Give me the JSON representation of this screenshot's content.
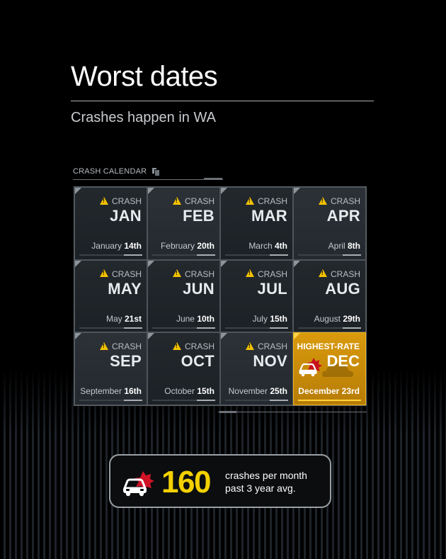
{
  "header": {
    "title": "Worst dates",
    "subtitle": "Crashes happen in WA"
  },
  "calendar": {
    "label": "CRASH CALENDAR",
    "crash_tag": "CRASH",
    "highest_tag": "HIGHEST-RATE",
    "months": [
      {
        "month": "JAN",
        "date_prefix": "January ",
        "date_day": "14th"
      },
      {
        "month": "FEB",
        "date_prefix": "February ",
        "date_day": "20th"
      },
      {
        "month": "MAR",
        "date_prefix": "March ",
        "date_day": "4th"
      },
      {
        "month": "APR",
        "date_prefix": "April ",
        "date_day": "8th"
      },
      {
        "month": "MAY",
        "date_prefix": "May ",
        "date_day": "21st"
      },
      {
        "month": "JUN",
        "date_prefix": "June ",
        "date_day": "10th"
      },
      {
        "month": "JUL",
        "date_prefix": "July ",
        "date_day": "15th"
      },
      {
        "month": "AUG",
        "date_prefix": "August ",
        "date_day": "29th"
      },
      {
        "month": "SEP",
        "date_prefix": "September ",
        "date_day": "16th"
      },
      {
        "month": "OCT",
        "date_prefix": "October ",
        "date_day": "15th"
      },
      {
        "month": "NOV",
        "date_prefix": "November ",
        "date_day": "25th"
      },
      {
        "month": "DEC",
        "date": "December 23rd"
      }
    ],
    "highlight_color": "#d99a0c"
  },
  "summary": {
    "value": "160",
    "line1": "crashes per month",
    "line2": "past 3 year avg.",
    "value_color": "#f3d000"
  },
  "icons": {
    "warning": "warning-triangle-icon",
    "crash": "car-crash-icon",
    "document": "document-icon"
  }
}
